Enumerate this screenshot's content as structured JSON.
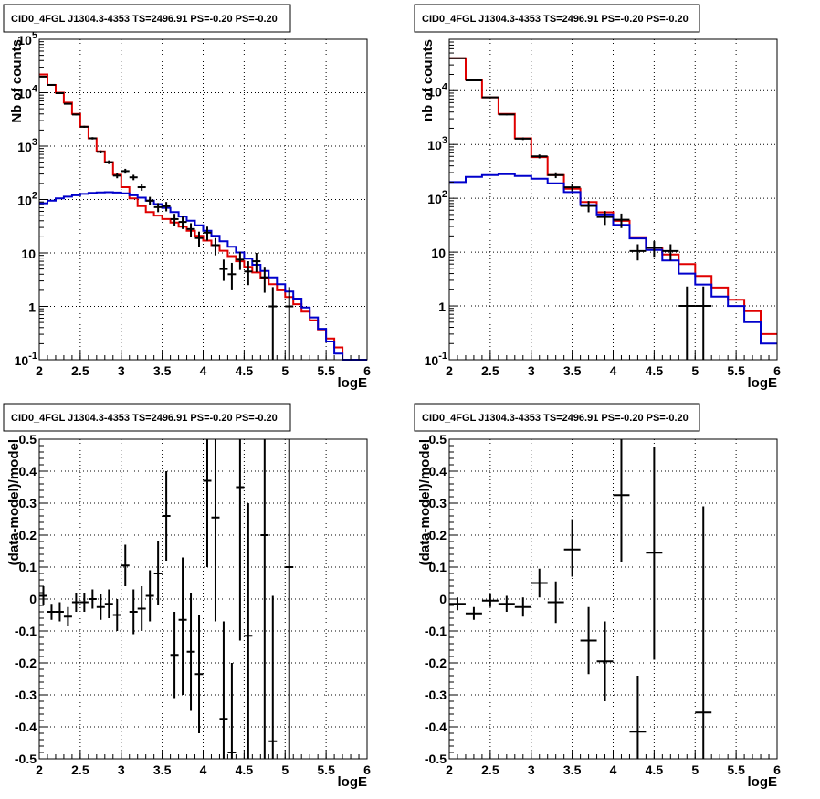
{
  "chart_data": [
    {
      "type": "histogram",
      "title": "CID0_4FGL J1304.3-4353 TS=2496.91 PS=-0.20 PS=-0.20",
      "xlabel": "logE",
      "ylabel": "Nb of counts",
      "xlim": [
        2,
        6
      ],
      "ylim": [
        0.1,
        100000
      ],
      "yscale": "log",
      "grid": true,
      "xticks": [
        "2",
        "2.5",
        "3",
        "3.5",
        "4",
        "4.5",
        "5",
        "5.5",
        "6"
      ],
      "yticks": [
        {
          "value": 0.1,
          "base": "10",
          "exp": "-1"
        },
        {
          "value": 1,
          "base": "1",
          "exp": ""
        },
        {
          "value": 10,
          "base": "10",
          "exp": ""
        },
        {
          "value": 100,
          "base": "10",
          "exp": "2"
        },
        {
          "value": 1000,
          "base": "10",
          "exp": "3"
        },
        {
          "value": 10000,
          "base": "10",
          "exp": "4"
        },
        {
          "value": 100000,
          "base": "10",
          "exp": "5"
        }
      ],
      "colors": {
        "total_model": "#e00000",
        "source_model": "#0000cc",
        "data": "#000000"
      },
      "bin_edges": [
        2.0,
        2.1,
        2.2,
        2.3,
        2.4,
        2.5,
        2.6,
        2.7,
        2.8,
        2.9,
        3.0,
        3.1,
        3.2,
        3.3,
        3.4,
        3.5,
        3.6,
        3.7,
        3.8,
        3.9,
        4.0,
        4.1,
        4.2,
        4.3,
        4.4,
        4.5,
        4.6,
        4.7,
        4.8,
        4.9,
        5.0,
        5.1,
        5.2,
        5.3,
        5.4,
        5.5,
        5.6,
        5.7,
        5.8,
        5.9,
        6.0
      ],
      "series": [
        {
          "key": "total_model",
          "values": [
            22000,
            14000,
            10000,
            6500,
            4000,
            2300,
            1400,
            800,
            500,
            290,
            170,
            105,
            75,
            58,
            50,
            43,
            37,
            31,
            26,
            21,
            17,
            14,
            11,
            8.7,
            7.0,
            5.5,
            4.3,
            3.4,
            2.6,
            2.0,
            1.5,
            1.1,
            0.8,
            0.55,
            0.37,
            0.25,
            0.17,
            0.1,
            0.1,
            0.1
          ]
        },
        {
          "key": "source_model",
          "values": [
            85,
            95,
            105,
            113,
            120,
            127,
            133,
            136,
            137,
            135,
            130,
            120,
            108,
            95,
            82,
            70,
            58,
            48,
            40,
            33,
            26,
            21,
            16.5,
            13,
            10.2,
            7.8,
            6.0,
            4.6,
            3.5,
            2.6,
            1.9,
            1.4,
            0.95,
            0.62,
            0.38,
            0.22,
            0.13,
            0.1,
            0.1,
            0.1
          ]
        }
      ],
      "points": [
        {
          "x": 2.05,
          "y": 20000,
          "lo": 19500,
          "hi": 20500
        },
        {
          "x": 2.15,
          "y": 14000,
          "lo": 13600,
          "hi": 14400
        },
        {
          "x": 2.25,
          "y": 9800,
          "lo": 9500,
          "hi": 10100
        },
        {
          "x": 2.35,
          "y": 6200,
          "lo": 6000,
          "hi": 6400
        },
        {
          "x": 2.45,
          "y": 3900,
          "lo": 3750,
          "hi": 4050
        },
        {
          "x": 2.55,
          "y": 2300,
          "lo": 2200,
          "hi": 2400
        },
        {
          "x": 2.65,
          "y": 1400,
          "lo": 1330,
          "hi": 1470
        },
        {
          "x": 2.75,
          "y": 780,
          "lo": 730,
          "hi": 830
        },
        {
          "x": 2.85,
          "y": 500,
          "lo": 460,
          "hi": 540
        },
        {
          "x": 2.95,
          "y": 280,
          "lo": 250,
          "hi": 310
        },
        {
          "x": 3.05,
          "y": 340,
          "lo": 305,
          "hi": 375
        },
        {
          "x": 3.15,
          "y": 260,
          "lo": 230,
          "hi": 290
        },
        {
          "x": 3.25,
          "y": 170,
          "lo": 146,
          "hi": 194
        },
        {
          "x": 3.35,
          "y": 95,
          "lo": 78,
          "hi": 112
        },
        {
          "x": 3.45,
          "y": 72,
          "lo": 58,
          "hi": 86
        },
        {
          "x": 3.55,
          "y": 75,
          "lo": 60,
          "hi": 90
        },
        {
          "x": 3.65,
          "y": 43,
          "lo": 32,
          "hi": 54
        },
        {
          "x": 3.75,
          "y": 38,
          "lo": 28,
          "hi": 48
        },
        {
          "x": 3.85,
          "y": 28,
          "lo": 20,
          "hi": 36
        },
        {
          "x": 3.95,
          "y": 19,
          "lo": 13,
          "hi": 25
        },
        {
          "x": 4.05,
          "y": 24,
          "lo": 17,
          "hi": 31
        },
        {
          "x": 4.15,
          "y": 14,
          "lo": 9,
          "hi": 19
        },
        {
          "x": 4.25,
          "y": 5,
          "lo": 3,
          "hi": 7.5
        },
        {
          "x": 4.35,
          "y": 4,
          "lo": 2,
          "hi": 6.5
        },
        {
          "x": 4.45,
          "y": 7.5,
          "lo": 4.8,
          "hi": 10.5
        },
        {
          "x": 4.55,
          "y": 4.5,
          "lo": 2.5,
          "hi": 7
        },
        {
          "x": 4.65,
          "y": 7,
          "lo": 4.4,
          "hi": 10
        },
        {
          "x": 4.75,
          "y": 3.5,
          "lo": 1.8,
          "hi": 5.5
        },
        {
          "x": 4.85,
          "y": 1,
          "lo": 0.1,
          "hi": 2.3
        },
        {
          "x": 5.05,
          "y": 1,
          "lo": 0.1,
          "hi": 2.3
        }
      ]
    },
    {
      "type": "histogram",
      "title": "CID0_4FGL J1304.3-4353 TS=2496.91 PS=-0.20 PS=-0.20",
      "xlabel": "logE",
      "ylabel": "nb of counts",
      "xlim": [
        2,
        6
      ],
      "ylim": [
        0.1,
        90000
      ],
      "yscale": "log",
      "grid": true,
      "xticks": [
        "2",
        "2.5",
        "3",
        "3.5",
        "4",
        "4.5",
        "5",
        "5.5",
        "6"
      ],
      "yticks": [
        {
          "value": 0.1,
          "base": "10",
          "exp": "-1"
        },
        {
          "value": 1,
          "base": "1",
          "exp": ""
        },
        {
          "value": 10,
          "base": "10",
          "exp": ""
        },
        {
          "value": 100,
          "base": "10",
          "exp": "2"
        },
        {
          "value": 1000,
          "base": "10",
          "exp": "3"
        },
        {
          "value": 10000,
          "base": "10",
          "exp": "4"
        }
      ],
      "colors": {
        "total_model": "#e00000",
        "source_model": "#0000cc",
        "data": "#000000"
      },
      "bin_edges": [
        2.0,
        2.2,
        2.4,
        2.6,
        2.8,
        3.0,
        3.2,
        3.4,
        3.6,
        3.8,
        4.0,
        4.2,
        4.4,
        4.6,
        4.8,
        5.0,
        5.2,
        5.4,
        5.6,
        5.8,
        6.0
      ],
      "series": [
        {
          "key": "total_model",
          "values": [
            40000,
            16000,
            7500,
            3700,
            1300,
            580,
            270,
            150,
            85,
            55,
            38,
            19,
            12,
            9,
            6,
            3.6,
            2.2,
            1.3,
            0.8,
            0.3
          ]
        },
        {
          "key": "source_model",
          "values": [
            200,
            250,
            270,
            280,
            260,
            230,
            190,
            130,
            75,
            50,
            32,
            18,
            11,
            7,
            4,
            2.5,
            1.5,
            1.0,
            0.5,
            0.2
          ]
        }
      ],
      "points": [
        {
          "x": 2.1,
          "y": 40000,
          "lo": 39600,
          "hi": 40400
        },
        {
          "x": 2.3,
          "y": 15500,
          "lo": 15250,
          "hi": 15750
        },
        {
          "x": 2.5,
          "y": 7500,
          "lo": 7330,
          "hi": 7670
        },
        {
          "x": 2.7,
          "y": 3600,
          "lo": 3480,
          "hi": 3720
        },
        {
          "x": 2.9,
          "y": 1280,
          "lo": 1210,
          "hi": 1350
        },
        {
          "x": 3.1,
          "y": 600,
          "lo": 550,
          "hi": 650
        },
        {
          "x": 3.3,
          "y": 270,
          "lo": 237,
          "hi": 303
        },
        {
          "x": 3.5,
          "y": 160,
          "lo": 135,
          "hi": 185
        },
        {
          "x": 3.7,
          "y": 72,
          "lo": 55,
          "hi": 89
        },
        {
          "x": 3.9,
          "y": 45,
          "lo": 32,
          "hi": 58
        },
        {
          "x": 4.1,
          "y": 40,
          "lo": 28,
          "hi": 52
        },
        {
          "x": 4.3,
          "y": 10.5,
          "lo": 7,
          "hi": 14
        },
        {
          "x": 4.5,
          "y": 12,
          "lo": 8.2,
          "hi": 16
        },
        {
          "x": 4.7,
          "y": 10.5,
          "lo": 7,
          "hi": 14
        },
        {
          "x": 4.9,
          "y": 1,
          "lo": 0.1,
          "hi": 2.3
        },
        {
          "x": 5.1,
          "y": 1,
          "lo": 0.1,
          "hi": 2.3
        }
      ]
    },
    {
      "type": "scatter",
      "title": "CID0_4FGL J1304.3-4353 TS=2496.91 PS=-0.20 PS=-0.20",
      "xlabel": "logE",
      "ylabel": "(data-model)/model",
      "xlim": [
        2,
        6
      ],
      "ylim": [
        -0.5,
        0.5
      ],
      "grid": true,
      "xticks": [
        "2",
        "2.5",
        "3",
        "3.5",
        "4",
        "4.5",
        "5",
        "5.5",
        "6"
      ],
      "yticks": [
        "-0.5",
        "-0.4",
        "-0.3",
        "-0.2",
        "-0.1",
        "0",
        "0.1",
        "0.2",
        "0.3",
        "0.4",
        "0.5"
      ],
      "xerr": 0.05,
      "points": [
        {
          "x": 2.05,
          "y": 0.01,
          "lo": -0.02,
          "hi": 0.04
        },
        {
          "x": 2.15,
          "y": -0.04,
          "lo": -0.065,
          "hi": -0.015
        },
        {
          "x": 2.25,
          "y": -0.04,
          "lo": -0.07,
          "hi": -0.01
        },
        {
          "x": 2.35,
          "y": -0.055,
          "lo": -0.085,
          "hi": -0.025
        },
        {
          "x": 2.45,
          "y": -0.01,
          "lo": -0.04,
          "hi": 0.02
        },
        {
          "x": 2.55,
          "y": -0.01,
          "lo": -0.04,
          "hi": 0.02
        },
        {
          "x": 2.65,
          "y": 0,
          "lo": -0.03,
          "hi": 0.03
        },
        {
          "x": 2.75,
          "y": -0.025,
          "lo": -0.065,
          "hi": 0.015
        },
        {
          "x": 2.85,
          "y": -0.015,
          "lo": -0.06,
          "hi": 0.03
        },
        {
          "x": 2.95,
          "y": -0.05,
          "lo": -0.1,
          "hi": 0
        },
        {
          "x": 3.05,
          "y": 0.105,
          "lo": 0.04,
          "hi": 0.17
        },
        {
          "x": 3.15,
          "y": -0.04,
          "lo": -0.11,
          "hi": 0.03
        },
        {
          "x": 3.25,
          "y": -0.03,
          "lo": -0.1,
          "hi": 0.04
        },
        {
          "x": 3.35,
          "y": 0.01,
          "lo": -0.07,
          "hi": 0.09
        },
        {
          "x": 3.45,
          "y": 0.08,
          "lo": -0.02,
          "hi": 0.18
        },
        {
          "x": 3.55,
          "y": 0.26,
          "lo": 0.12,
          "hi": 0.4
        },
        {
          "x": 3.65,
          "y": -0.175,
          "lo": -0.31,
          "hi": -0.04
        },
        {
          "x": 3.75,
          "y": -0.065,
          "lo": -0.3,
          "hi": 0.13
        },
        {
          "x": 3.85,
          "y": -0.165,
          "lo": -0.35,
          "hi": 0.02
        },
        {
          "x": 3.95,
          "y": -0.235,
          "lo": -0.42,
          "hi": -0.05
        },
        {
          "x": 4.05,
          "y": 0.37,
          "lo": 0.1,
          "hi": 0.5
        },
        {
          "x": 4.15,
          "y": 0.255,
          "lo": -0.07,
          "hi": 0.5
        },
        {
          "x": 4.25,
          "y": -0.375,
          "lo": -0.5,
          "hi": -0.07
        },
        {
          "x": 4.35,
          "y": -0.48,
          "lo": -0.5,
          "hi": -0.2
        },
        {
          "x": 4.45,
          "y": 0.35,
          "lo": -0.13,
          "hi": 0.5
        },
        {
          "x": 4.55,
          "y": -0.115,
          "lo": -0.5,
          "hi": 0.3
        },
        {
          "x": 4.75,
          "y": 0.2,
          "lo": -0.5,
          "hi": 0.5
        },
        {
          "x": 4.85,
          "y": -0.445,
          "lo": -0.5,
          "hi": 0.01
        },
        {
          "x": 5.05,
          "y": 0.1,
          "lo": -0.5,
          "hi": 0.5
        }
      ]
    },
    {
      "type": "scatter",
      "title": "CID0_4FGL J1304.3-4353 TS=2496.91 PS=-0.20 PS=-0.20",
      "xlabel": "logE",
      "ylabel": "(data-model)/model",
      "xlim": [
        2,
        6
      ],
      "ylim": [
        -0.5,
        0.5
      ],
      "grid": true,
      "xticks": [
        "2",
        "2.5",
        "3",
        "3.5",
        "4",
        "4.5",
        "5",
        "5.5",
        "6"
      ],
      "yticks": [
        "-0.5",
        "-0.4",
        "-0.3",
        "-0.2",
        "-0.1",
        "0",
        "0.1",
        "0.2",
        "0.3",
        "0.4",
        "0.5"
      ],
      "xerr": 0.1,
      "points": [
        {
          "x": 2.1,
          "y": -0.015,
          "lo": -0.035,
          "hi": 0.005
        },
        {
          "x": 2.3,
          "y": -0.045,
          "lo": -0.065,
          "hi": -0.025
        },
        {
          "x": 2.5,
          "y": -0.005,
          "lo": -0.025,
          "hi": 0.015
        },
        {
          "x": 2.7,
          "y": -0.015,
          "lo": -0.04,
          "hi": 0.01
        },
        {
          "x": 2.9,
          "y": -0.025,
          "lo": -0.055,
          "hi": 0.005
        },
        {
          "x": 3.1,
          "y": 0.05,
          "lo": 0.005,
          "hi": 0.095
        },
        {
          "x": 3.3,
          "y": -0.01,
          "lo": -0.075,
          "hi": 0.055
        },
        {
          "x": 3.5,
          "y": 0.155,
          "lo": 0.07,
          "hi": 0.25
        },
        {
          "x": 3.7,
          "y": -0.13,
          "lo": -0.235,
          "hi": -0.025
        },
        {
          "x": 3.9,
          "y": -0.195,
          "lo": -0.32,
          "hi": -0.07
        },
        {
          "x": 4.1,
          "y": 0.325,
          "lo": 0.115,
          "hi": 0.5
        },
        {
          "x": 4.3,
          "y": -0.415,
          "lo": -0.5,
          "hi": -0.24
        },
        {
          "x": 4.5,
          "y": 0.145,
          "lo": -0.19,
          "hi": 0.475
        },
        {
          "x": 5.1,
          "y": -0.355,
          "lo": -0.5,
          "hi": 0.29
        }
      ]
    }
  ]
}
